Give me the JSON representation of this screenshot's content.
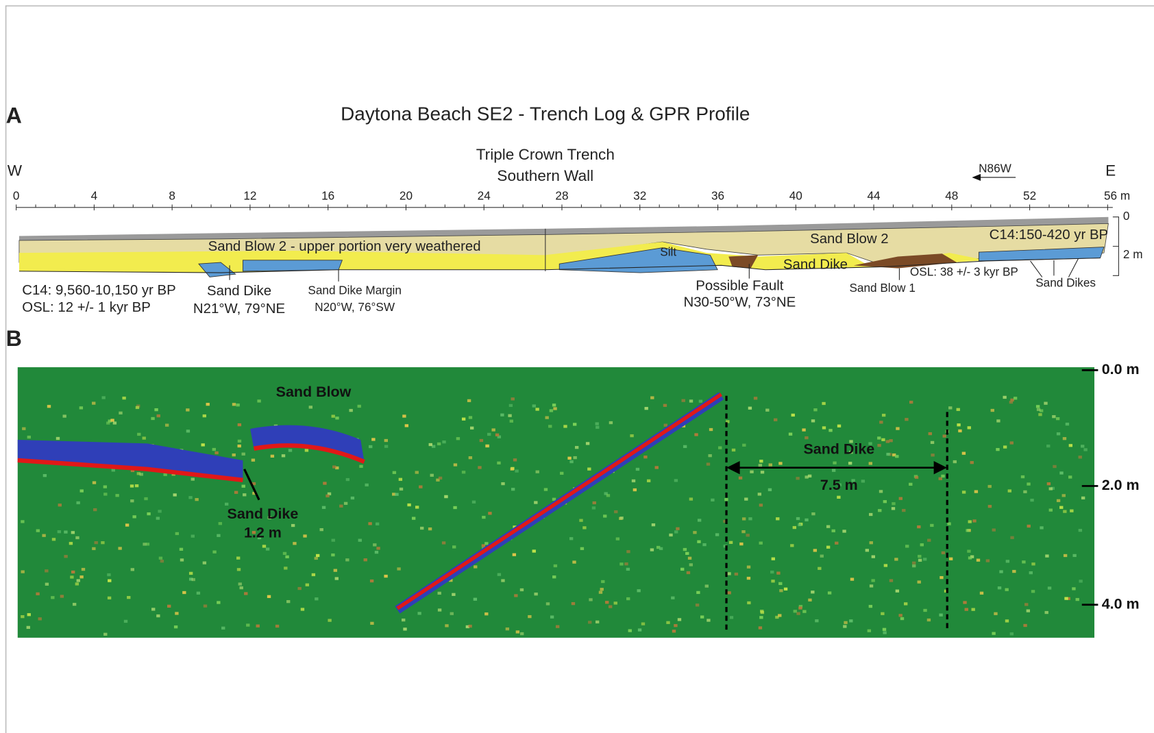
{
  "panel_a": {
    "letter": "A",
    "title": "Daytona Beach SE2 - Trench Log & GPR Profile",
    "trench_name": "Triple Crown Trench",
    "wall": "Southern Wall",
    "west": "W",
    "east": "E",
    "direction": "N86W",
    "distance_ticks": [
      "0",
      "4",
      "8",
      "12",
      "16",
      "20",
      "24",
      "28",
      "32",
      "36",
      "40",
      "44",
      "48",
      "52",
      "56 m"
    ],
    "depth_ticks": [
      "0",
      "2 m"
    ],
    "units": [
      "Sand Blow 2 - upper portion very weathered",
      "Sand Blow 2",
      "Silt",
      "Sand Dike",
      "C14:150-420 yr BP"
    ],
    "annotations": [
      [
        "C14: 9,560-10,150 yr BP",
        "OSL: 12 +/- 1 kyr BP"
      ],
      [
        "Sand Dike",
        "N21°W, 79°NE"
      ],
      [
        "Sand Dike Margin",
        "N20°W, 76°SW"
      ],
      [
        "Possible Fault",
        "N30-50°W, 73°NE"
      ],
      [
        "Sand Blow 1"
      ],
      [
        "OSL: 38 +/- 3 kyr BP"
      ],
      [
        "Sand Dikes"
      ]
    ]
  },
  "panel_b": {
    "letter": "B",
    "depth_ticks": [
      "0.0 m",
      "2.0 m",
      "4.0 m"
    ],
    "labels": [
      "Sand Blow",
      "Sand Dike",
      "1.2 m",
      "Sand Dike",
      "7.5 m"
    ]
  }
}
